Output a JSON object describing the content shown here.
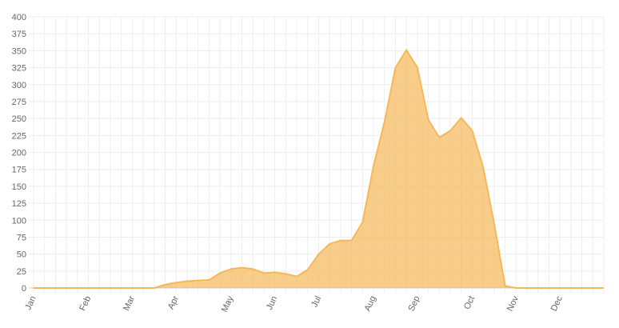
{
  "chart_data": {
    "type": "area",
    "categories": [
      "Jan",
      null,
      null,
      null,
      null,
      "Feb",
      null,
      null,
      null,
      "Mar",
      null,
      null,
      null,
      "Apr",
      null,
      null,
      null,
      null,
      "May",
      null,
      null,
      null,
      "Jun",
      null,
      null,
      null,
      "Jul",
      null,
      null,
      null,
      null,
      "Aug",
      null,
      null,
      null,
      "Sep",
      null,
      null,
      null,
      null,
      "Oct",
      null,
      null,
      null,
      "Nov",
      null,
      null,
      null,
      "Dec",
      null,
      null,
      null,
      null
    ],
    "values": [
      0,
      0,
      0,
      0,
      0,
      0,
      0,
      0,
      0,
      0,
      0,
      0,
      5,
      8,
      10,
      11,
      12,
      22,
      28,
      30,
      28,
      22,
      23,
      21,
      17,
      27,
      50,
      65,
      70,
      70,
      97,
      180,
      245,
      325,
      351,
      325,
      248,
      222,
      232,
      251,
      232,
      178,
      95,
      3,
      0,
      0,
      0,
      0,
      0,
      0,
      0,
      0,
      0
    ],
    "color": "#f5b858",
    "ylim": [
      0,
      400
    ],
    "yticks": [
      0,
      25,
      50,
      75,
      100,
      125,
      150,
      175,
      200,
      225,
      250,
      275,
      300,
      325,
      350,
      375,
      400
    ],
    "grid": true
  }
}
